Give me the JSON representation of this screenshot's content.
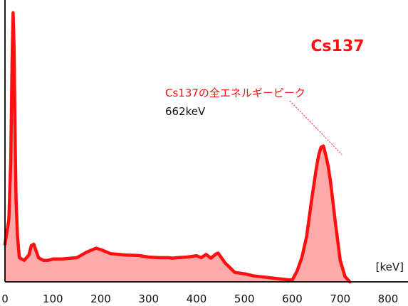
{
  "chart_data": {
    "type": "area",
    "title": "Cs137",
    "xlabel": "[keV]",
    "ylabel": "",
    "xlim": [
      0,
      800
    ],
    "x_ticks": [
      "0",
      "100",
      "200",
      "300",
      "400",
      "500",
      "600",
      "700",
      "800"
    ],
    "grid": false,
    "colors": {
      "line": "#ff1010",
      "fill": "#ffaaaa",
      "axis": "#000000",
      "annotation": "#ff1010"
    },
    "annotation": {
      "label": "Cs137の全エネルギーピーク",
      "sublabel": "662keV",
      "x": 662
    },
    "series": [
      {
        "x": [
          0,
          8,
          12,
          15,
          17,
          19,
          21,
          23,
          26,
          30,
          40,
          50,
          55,
          60,
          65,
          70,
          80,
          90,
          100,
          120,
          150,
          170,
          190,
          200,
          220,
          250,
          280,
          300,
          320,
          340,
          350,
          360,
          380,
          400,
          410,
          420,
          430,
          440,
          445,
          460,
          480,
          500,
          520,
          540,
          570,
          590,
          600,
          610,
          620,
          630,
          640,
          650,
          655,
          660,
          665,
          670,
          675,
          680,
          690,
          700,
          710,
          720
        ],
        "y": [
          0.14,
          0.23,
          0.45,
          0.84,
          1.0,
          0.86,
          0.56,
          0.31,
          0.17,
          0.09,
          0.08,
          0.1,
          0.135,
          0.14,
          0.115,
          0.09,
          0.08,
          0.08,
          0.085,
          0.085,
          0.09,
          0.11,
          0.125,
          0.12,
          0.105,
          0.1,
          0.098,
          0.092,
          0.09,
          0.09,
          0.088,
          0.09,
          0.092,
          0.097,
          0.09,
          0.102,
          0.088,
          0.103,
          0.107,
          0.07,
          0.035,
          0.03,
          0.022,
          0.018,
          0.012,
          0.008,
          0.007,
          0.04,
          0.09,
          0.17,
          0.3,
          0.42,
          0.47,
          0.5,
          0.505,
          0.47,
          0.43,
          0.37,
          0.22,
          0.08,
          0.02,
          0.0
        ]
      }
    ]
  }
}
